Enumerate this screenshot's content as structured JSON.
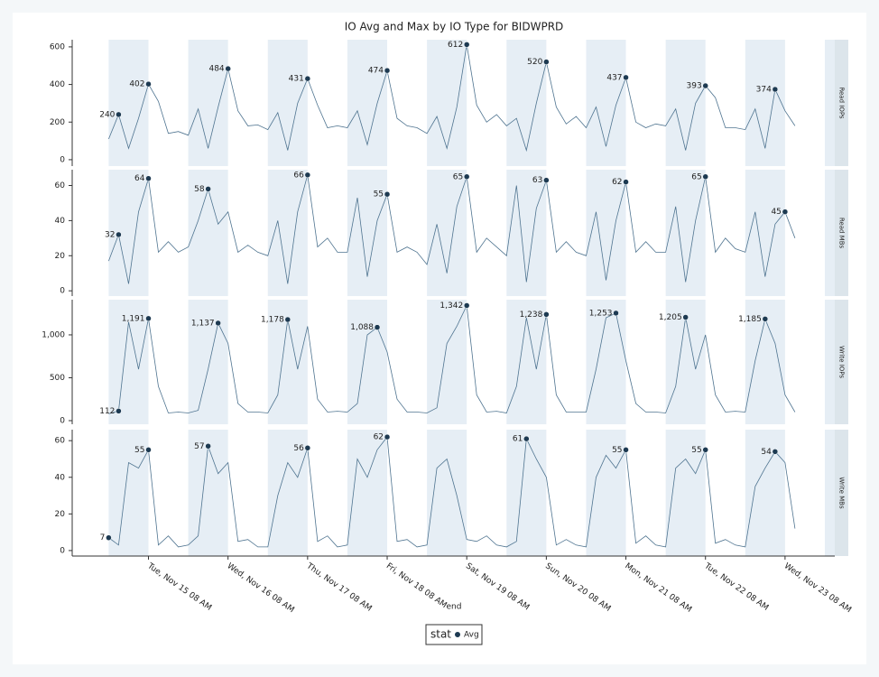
{
  "chart_data": {
    "type": "line",
    "title": "IO Avg and Max by IO Type for BIDWPRD",
    "xlabel": "end",
    "legend_title": "stat",
    "legend_label": "Avg",
    "line_color": "#4f7490",
    "marker_color": "#1d3a52",
    "shade_color": "#e6eef5",
    "strip_color": "#dce5eb",
    "xlim": [
      "Mon, Nov 14 09 AM",
      "Wed, Nov 23 11 PM"
    ],
    "xticks": [
      "Tue, Nov 15 08 AM",
      "Wed, Nov 16 08 AM",
      "Thu, Nov 17 08 AM",
      "Fri, Nov 18 08 AM",
      "Sat, Nov 19 08 AM",
      "Sun, Nov 20 08 AM",
      "Mon, Nov 21 08 AM",
      "Tue, Nov 22 08 AM",
      "Wed, Nov 23 08 AM"
    ],
    "x": [
      "Mon, Nov 14 08 PM",
      "Mon, Nov 14 11 PM",
      "Tue, Nov 15 02 AM",
      "Tue, Nov 15 05 AM",
      "Tue, Nov 15 08 AM",
      "Tue, Nov 15 11 AM",
      "Tue, Nov 15 02 PM",
      "Tue, Nov 15 05 PM",
      "Tue, Nov 15 08 PM",
      "Tue, Nov 15 11 PM",
      "Wed, Nov 16 02 AM",
      "Wed, Nov 16 05 AM",
      "Wed, Nov 16 08 AM",
      "Wed, Nov 16 11 AM",
      "Wed, Nov 16 02 PM",
      "Wed, Nov 16 05 PM",
      "Wed, Nov 16 08 PM",
      "Wed, Nov 16 11 PM",
      "Thu, Nov 17 02 AM",
      "Thu, Nov 17 05 AM",
      "Thu, Nov 17 08 AM",
      "Thu, Nov 17 11 AM",
      "Thu, Nov 17 02 PM",
      "Thu, Nov 17 05 PM",
      "Thu, Nov 17 08 PM",
      "Thu, Nov 17 11 PM",
      "Fri, Nov 18 02 AM",
      "Fri, Nov 18 05 AM",
      "Fri, Nov 18 08 AM",
      "Fri, Nov 18 11 AM",
      "Fri, Nov 18 02 PM",
      "Fri, Nov 18 05 PM",
      "Fri, Nov 18 08 PM",
      "Fri, Nov 18 11 PM",
      "Sat, Nov 19 02 AM",
      "Sat, Nov 19 05 AM",
      "Sat, Nov 19 08 AM",
      "Sat, Nov 19 11 AM",
      "Sat, Nov 19 02 PM",
      "Sat, Nov 19 05 PM",
      "Sat, Nov 19 08 PM",
      "Sat, Nov 19 11 PM",
      "Sun, Nov 20 02 AM",
      "Sun, Nov 20 05 AM",
      "Sun, Nov 20 08 AM",
      "Sun, Nov 20 11 AM",
      "Sun, Nov 20 02 PM",
      "Sun, Nov 20 05 PM",
      "Sun, Nov 20 08 PM",
      "Sun, Nov 20 11 PM",
      "Mon, Nov 21 02 AM",
      "Mon, Nov 21 05 AM",
      "Mon, Nov 21 08 AM",
      "Mon, Nov 21 11 AM",
      "Mon, Nov 21 02 PM",
      "Mon, Nov 21 05 PM",
      "Mon, Nov 21 08 PM",
      "Mon, Nov 21 11 PM",
      "Tue, Nov 22 02 AM",
      "Tue, Nov 22 05 AM",
      "Tue, Nov 22 08 AM",
      "Tue, Nov 22 11 AM",
      "Tue, Nov 22 02 PM",
      "Tue, Nov 22 05 PM",
      "Tue, Nov 22 08 PM",
      "Tue, Nov 22 11 PM",
      "Wed, Nov 23 02 AM",
      "Wed, Nov 23 05 AM",
      "Wed, Nov 23 08 AM",
      "Wed, Nov 23 11 AM"
    ],
    "panels": [
      {
        "label": "Read IOPs",
        "ylim": [
          -34,
          638
        ],
        "yticks": [
          0,
          200,
          400,
          600
        ],
        "values": [
          110,
          240,
          60,
          220,
          402,
          310,
          140,
          150,
          130,
          270,
          60,
          280,
          484,
          260,
          180,
          185,
          160,
          250,
          50,
          300,
          431,
          290,
          170,
          180,
          170,
          260,
          80,
          300,
          474,
          220,
          180,
          170,
          140,
          230,
          60,
          280,
          612,
          290,
          200,
          240,
          180,
          220,
          50,
          300,
          520,
          280,
          190,
          230,
          170,
          280,
          70,
          290,
          437,
          200,
          170,
          190,
          180,
          270,
          50,
          300,
          393,
          330,
          170,
          170,
          160,
          270,
          60,
          374,
          260,
          180
        ],
        "peaks": {
          "x": [
            "Mon, Nov 14 11 PM",
            "Tue, Nov 15 08 AM",
            "Wed, Nov 16 08 AM",
            "Thu, Nov 17 08 AM",
            "Fri, Nov 18 08 AM",
            "Sat, Nov 19 08 AM",
            "Sun, Nov 20 08 AM",
            "Mon, Nov 21 08 AM",
            "Tue, Nov 22 08 AM",
            "Wed, Nov 23 05 AM"
          ],
          "values": [
            240,
            402,
            484,
            431,
            474,
            612,
            520,
            437,
            393,
            374
          ]
        }
      },
      {
        "label": "Read MBs",
        "ylim": [
          -3,
          69
        ],
        "yticks": [
          0,
          20,
          40,
          60
        ],
        "values": [
          17,
          32,
          4,
          45,
          64,
          22,
          28,
          22,
          25,
          40,
          58,
          38,
          45,
          22,
          26,
          22,
          20,
          40,
          4,
          45,
          66,
          25,
          30,
          22,
          22,
          53,
          8,
          40,
          55,
          22,
          25,
          22,
          15,
          38,
          10,
          48,
          65,
          22,
          30,
          25,
          20,
          60,
          5,
          47,
          63,
          22,
          28,
          22,
          20,
          45,
          6,
          40,
          62,
          22,
          28,
          22,
          22,
          48,
          5,
          40,
          65,
          22,
          30,
          24,
          22,
          45,
          8,
          38,
          45,
          30
        ],
        "peaks": {
          "x": [
            "Mon, Nov 14 11 PM",
            "Tue, Nov 15 08 AM",
            "Wed, Nov 16 02 AM",
            "Thu, Nov 17 08 AM",
            "Fri, Nov 18 08 AM",
            "Sat, Nov 19 08 AM",
            "Sun, Nov 20 08 AM",
            "Mon, Nov 21 08 AM",
            "Tue, Nov 22 08 AM",
            "Wed, Nov 23 08 AM"
          ],
          "values": [
            32,
            64,
            58,
            66,
            55,
            65,
            63,
            62,
            65,
            45
          ]
        }
      },
      {
        "label": "Write IOPs",
        "ylim": [
          -42,
          1410
        ],
        "yticks": [
          0,
          500,
          {
            "value": 1000,
            "label": "1,000"
          }
        ],
        "values": [
          80,
          112,
          1150,
          600,
          1191,
          400,
          90,
          100,
          90,
          120,
          600,
          1137,
          900,
          200,
          100,
          100,
          90,
          300,
          1178,
          600,
          1100,
          250,
          100,
          110,
          100,
          200,
          1000,
          1088,
          800,
          250,
          100,
          100,
          90,
          150,
          900,
          1100,
          1342,
          300,
          100,
          110,
          90,
          400,
          1200,
          600,
          1238,
          300,
          100,
          100,
          100,
          600,
          1200,
          1253,
          700,
          200,
          100,
          100,
          90,
          400,
          1205,
          600,
          1000,
          300,
          100,
          110,
          100,
          700,
          1185,
          900,
          300,
          100
        ],
        "peaks": {
          "x": [
            "Mon, Nov 14 11 PM",
            "Tue, Nov 15 08 AM",
            "Wed, Nov 16 05 AM",
            "Thu, Nov 17 02 AM",
            "Fri, Nov 18 05 AM",
            "Sat, Nov 19 08 AM",
            "Sun, Nov 20 08 AM",
            "Mon, Nov 21 05 AM",
            "Tue, Nov 22 02 AM",
            "Wed, Nov 23 02 AM"
          ],
          "values": [
            112,
            1191,
            1137,
            1178,
            1088,
            1342,
            1238,
            1253,
            1205,
            1185
          ],
          "value_labels": [
            "112",
            "1,191",
            "1,137",
            "1,178",
            "1,088",
            "1,342",
            "1,238",
            "1,253",
            "1,205",
            "1,185"
          ]
        }
      },
      {
        "label": "Write MBs",
        "ylim": [
          -3,
          66
        ],
        "yticks": [
          0,
          20,
          40,
          60
        ],
        "values": [
          7,
          3,
          48,
          45,
          55,
          3,
          8,
          2,
          3,
          8,
          57,
          42,
          48,
          5,
          6,
          2,
          2,
          30,
          48,
          40,
          56,
          5,
          8,
          2,
          3,
          50,
          40,
          55,
          62,
          5,
          6,
          2,
          3,
          45,
          50,
          30,
          6,
          5,
          8,
          3,
          2,
          5,
          61,
          50,
          40,
          3,
          6,
          3,
          2,
          40,
          52,
          45,
          55,
          4,
          8,
          3,
          2,
          45,
          50,
          42,
          55,
          4,
          6,
          3,
          2,
          35,
          45,
          54,
          48,
          12
        ],
        "peaks": {
          "x": [
            "Mon, Nov 14 08 PM",
            "Tue, Nov 15 08 AM",
            "Wed, Nov 16 02 AM",
            "Thu, Nov 17 08 AM",
            "Fri, Nov 18 08 AM",
            "Sun, Nov 20 02 AM",
            "Mon, Nov 21 08 AM",
            "Tue, Nov 22 08 AM",
            "Wed, Nov 23 05 AM"
          ],
          "values": [
            7,
            55,
            57,
            56,
            62,
            61,
            55,
            55,
            54
          ]
        }
      }
    ]
  }
}
